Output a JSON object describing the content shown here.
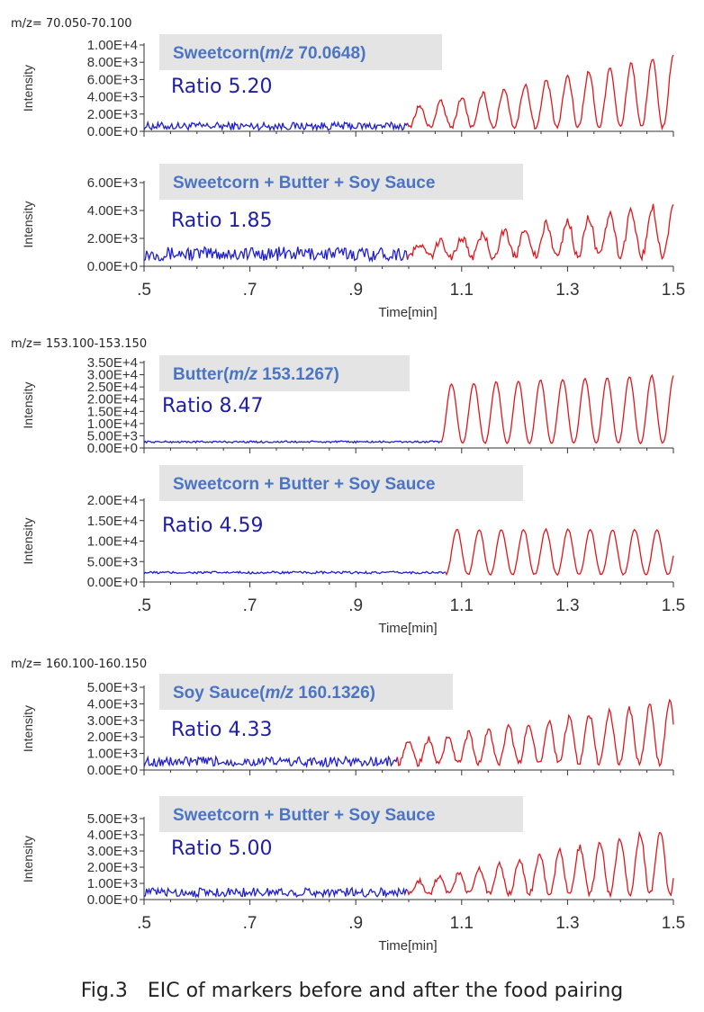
{
  "caption": "Fig.3　EIC of markers before and after the food pairing",
  "colors": {
    "before": "#1f1fd0",
    "after": "#e0161c",
    "badge_bg": "#e4e4e4",
    "badge_text": "#4a74c4",
    "ratio_text": "#1f1fa0"
  },
  "chart_data": [
    {
      "type": "line",
      "mz_label": "m/z= 70.050-70.100",
      "badge": {
        "name": "Sweetcorn",
        "mz_prefix": "(",
        "mz_italic": "m/z",
        "mz_value": " 70.0648)"
      },
      "ratio": "Ratio 5.20",
      "ylabel": "Intensity",
      "xlabel": "",
      "ylim": [
        0,
        10000
      ],
      "yticks": [
        "0.00E+0",
        "2.00E+3",
        "4.00E+3",
        "6.00E+3",
        "8.00E+3",
        "1.00E+4"
      ],
      "xlim": [
        0.5,
        1.5
      ],
      "xticks": [],
      "switch_x": 1.0,
      "baseline": 600,
      "noise": 450,
      "base_amp": 2200,
      "growth": 6200,
      "period": 0.04
    },
    {
      "type": "line",
      "mz_label": "",
      "badge": {
        "name": "Sweetcorn + Butter + Soy Sauce"
      },
      "ratio": "Ratio 1.85",
      "ylabel": "Intensity",
      "xlabel": "Time[min]",
      "ylim": [
        0,
        6000
      ],
      "yticks": [
        "0.00E+0",
        "2.00E+3",
        "4.00E+3",
        "6.00E+3"
      ],
      "xlim": [
        0.5,
        1.5
      ],
      "xticks": [
        ".5",
        ".7",
        ".9",
        "1.1",
        "1.3",
        "1.5"
      ],
      "switch_x": 1.0,
      "baseline": 900,
      "noise": 500,
      "base_amp": 700,
      "growth": 3100,
      "period": 0.04
    },
    {
      "type": "line",
      "mz_label": "m/z= 153.100-153.150",
      "badge": {
        "name": "Butter",
        "mz_prefix": "(",
        "mz_italic": "m/z",
        "mz_value": " 153.1267)"
      },
      "ratio": "Ratio 8.47",
      "ylabel": "Intensity",
      "xlabel": "",
      "ylim": [
        0,
        35000
      ],
      "yticks": [
        "0.00E+0",
        "5.00E+3",
        "1.00E+4",
        "1.50E+4",
        "2.00E+4",
        "2.50E+4",
        "3.00E+4",
        "3.50E+4"
      ],
      "xlim": [
        0.5,
        1.5
      ],
      "xticks": [],
      "switch_x": 1.06,
      "baseline": 2500,
      "noise": 400,
      "base_amp": 24000,
      "growth": 4000,
      "period": 0.042
    },
    {
      "type": "line",
      "mz_label": "",
      "badge": {
        "name": "Sweetcorn + Butter + Soy Sauce"
      },
      "ratio": "Ratio 4.59",
      "ylabel": "Intensity",
      "xlabel": "Time[min]",
      "ylim": [
        0,
        20000
      ],
      "yticks": [
        "0.00E+0",
        "5.00E+3",
        "1.00E+4",
        "1.50E+4",
        "2.00E+4"
      ],
      "xlim": [
        0.5,
        1.5
      ],
      "xticks": [
        ".5",
        ".7",
        ".9",
        "1.1",
        "1.3",
        "1.5"
      ],
      "switch_x": 1.07,
      "baseline": 2300,
      "noise": 300,
      "base_amp": 11000,
      "growth": 0,
      "period": 0.042
    },
    {
      "type": "line",
      "mz_label": "m/z= 160.100-160.150",
      "badge": {
        "name": "Soy Sauce",
        "mz_prefix": "(",
        "mz_italic": "m/z",
        "mz_value": " 160.1326)"
      },
      "ratio": "Ratio 4.33",
      "ylabel": "Intensity",
      "xlabel": "",
      "ylim": [
        0,
        5000
      ],
      "yticks": [
        "0.00E+0",
        "1.00E+3",
        "2.00E+3",
        "3.00E+3",
        "4.00E+3",
        "5.00E+3"
      ],
      "xlim": [
        0.5,
        1.5
      ],
      "xticks": [],
      "switch_x": 0.98,
      "baseline": 500,
      "noise": 300,
      "base_amp": 1200,
      "growth": 2500,
      "period": 0.038
    },
    {
      "type": "line",
      "mz_label": "",
      "badge": {
        "name": "Sweetcorn + Butter + Soy Sauce"
      },
      "ratio": "Ratio 5.00",
      "ylabel": "Intensity",
      "xlabel": "Time[min]",
      "ylim": [
        0,
        5000
      ],
      "yticks": [
        "0.00E+0",
        "1.00E+3",
        "2.00E+3",
        "3.00E+3",
        "4.00E+3",
        "5.00E+3"
      ],
      "xlim": [
        0.5,
        1.5
      ],
      "xticks": [
        ".5",
        ".7",
        ".9",
        "1.1",
        "1.3",
        "1.5"
      ],
      "switch_x": 1.0,
      "baseline": 450,
      "noise": 280,
      "base_amp": 700,
      "growth": 3400,
      "period": 0.038
    }
  ]
}
